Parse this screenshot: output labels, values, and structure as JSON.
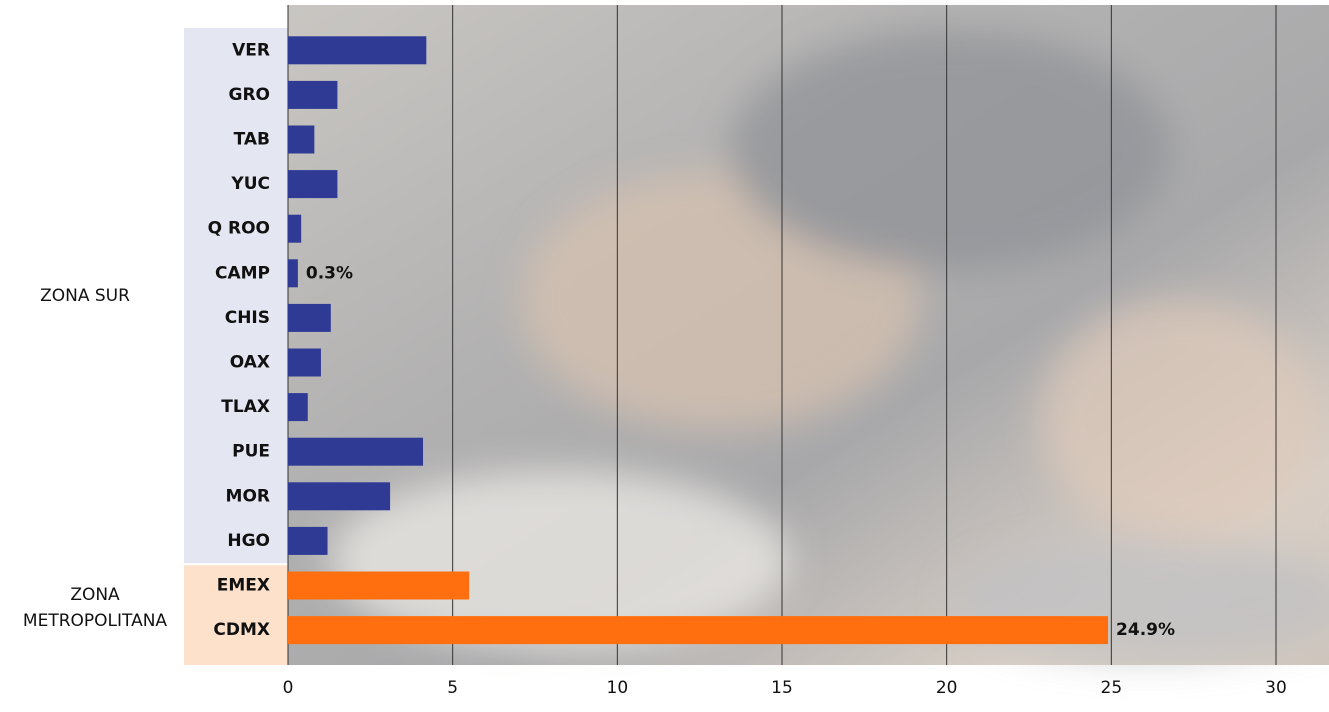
{
  "chart_data": {
    "type": "bar",
    "orientation": "horizontal",
    "categories": [
      "VER",
      "GRO",
      "TAB",
      "YUC",
      "Q ROO",
      "CAMP",
      "CHIS",
      "OAX",
      "TLAX",
      "PUE",
      "MOR",
      "HGO",
      "EMEX",
      "CDMX"
    ],
    "values": [
      4.2,
      1.5,
      0.8,
      1.5,
      0.4,
      0.3,
      1.3,
      1.0,
      0.6,
      4.1,
      3.1,
      1.2,
      5.5,
      24.9
    ],
    "value_labels": [
      null,
      null,
      null,
      null,
      null,
      "0.3%",
      null,
      null,
      null,
      null,
      null,
      null,
      null,
      "24.9%"
    ],
    "groups": [
      {
        "name": "ZONA SUR",
        "count": 12,
        "color": "#2e3a93",
        "band_color": "#e4e7f1"
      },
      {
        "name": "ZONA METROPOLITANA",
        "count": 2,
        "color": "#ff6f0f",
        "band_color": "#fde1cb"
      }
    ],
    "xlim": [
      0,
      30
    ],
    "xticks": [
      0,
      5,
      10,
      15,
      20,
      25,
      30
    ],
    "grid": true
  }
}
